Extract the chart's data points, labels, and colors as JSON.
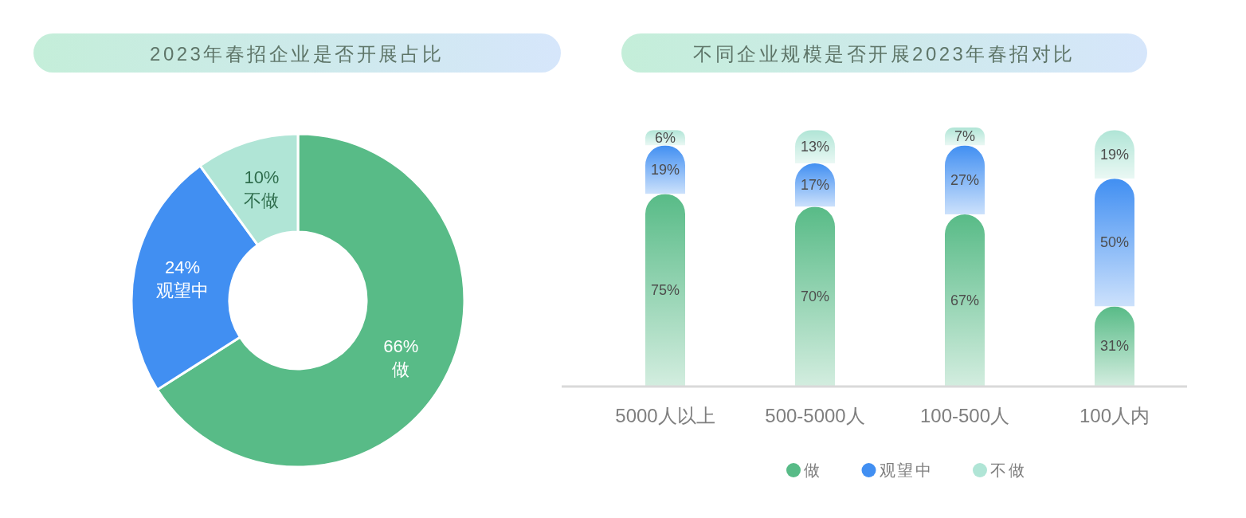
{
  "chart_data": [
    {
      "type": "donut",
      "title": "2023年春招企业是否开展占比",
      "categories": [
        "做",
        "观望中",
        "不做"
      ],
      "values": [
        66,
        24,
        10
      ],
      "colors": [
        "#58bb87",
        "#418ff2",
        "#b0e5d6"
      ],
      "value_labels": [
        "66%",
        "24%",
        "10%"
      ]
    },
    {
      "type": "bar",
      "title": "不同企业规模是否开展2023年春招对比",
      "categories": [
        "5000人以上",
        "500-5000人",
        "100-500人",
        "100人内"
      ],
      "stacked": true,
      "legend": "bottom",
      "series": [
        {
          "name": "做",
          "color": "#58bb87",
          "values": [
            75,
            70,
            67,
            31
          ],
          "value_labels": [
            "75%",
            "70%",
            "67%",
            "31%"
          ]
        },
        {
          "name": "观望中",
          "color": "#418ff2",
          "values": [
            19,
            17,
            27,
            50
          ],
          "value_labels": [
            "19%",
            "17%",
            "27%",
            "50%"
          ]
        },
        {
          "name": "不做",
          "color": "#b0e5d6",
          "values": [
            6,
            13,
            7,
            19
          ],
          "value_labels": [
            "6%",
            "13%",
            "7%",
            "19%"
          ]
        }
      ]
    }
  ]
}
